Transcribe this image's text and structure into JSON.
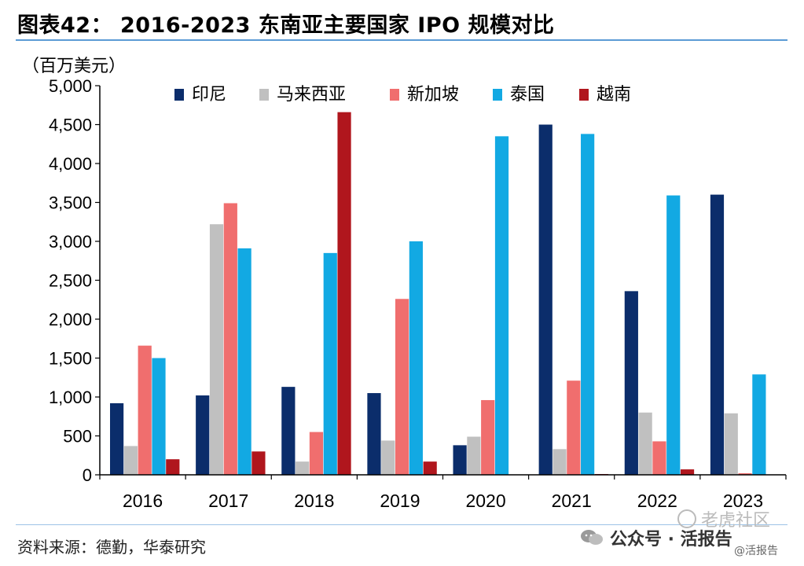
{
  "title": "图表42：  2016-2023 东南亚主要国家 IPO 规模对比",
  "unit_label": "（百万美元）",
  "source": "资料来源：德勤，华泰研究",
  "watermarks": {
    "wechat": "公众号 · 活报告",
    "tiger": "老虎社区",
    "handle": "@活报告"
  },
  "colors": {
    "title_rule": "#5b9bd5",
    "axis": "#000000"
  },
  "chart_data": {
    "type": "bar",
    "title": "2016-2023 东南亚主要国家 IPO 规模对比",
    "ylabel": "（百万美元）",
    "xlabel": "",
    "ylim": [
      0,
      5000
    ],
    "grid": false,
    "legend_position": "top",
    "categories": [
      "2016",
      "2017",
      "2018",
      "2019",
      "2020",
      "2021",
      "2022",
      "2023"
    ],
    "yticks": [
      {
        "value": 0,
        "label": "0"
      },
      {
        "value": 500,
        "label": "500"
      },
      {
        "value": 1000,
        "label": "1,000"
      },
      {
        "value": 1500,
        "label": "1,500"
      },
      {
        "value": 2000,
        "label": "2,000"
      },
      {
        "value": 2500,
        "label": "2,500"
      },
      {
        "value": 3000,
        "label": "3,000"
      },
      {
        "value": 3500,
        "label": "3,500"
      },
      {
        "value": 4000,
        "label": "4,000"
      },
      {
        "value": 4500,
        "label": "4,500"
      },
      {
        "value": 5000,
        "label": "5,000"
      }
    ],
    "series": [
      {
        "name": "印尼",
        "color": "#0b2d6b",
        "values": [
          920,
          1020,
          1130,
          1050,
          380,
          4500,
          2360,
          3600
        ]
      },
      {
        "name": "马来西亚",
        "color": "#c0c0c0",
        "values": [
          370,
          3220,
          170,
          440,
          490,
          330,
          800,
          790
        ]
      },
      {
        "name": "新加坡",
        "color": "#f06e6e",
        "values": [
          1660,
          3490,
          550,
          2260,
          960,
          1210,
          430,
          20
        ]
      },
      {
        "name": "泰国",
        "color": "#12a9e3",
        "values": [
          1500,
          2910,
          2850,
          3000,
          4350,
          4380,
          3590,
          1290
        ]
      },
      {
        "name": "越南",
        "color": "#b0161d",
        "values": [
          200,
          300,
          4660,
          170,
          5,
          10,
          70,
          0
        ]
      }
    ]
  }
}
